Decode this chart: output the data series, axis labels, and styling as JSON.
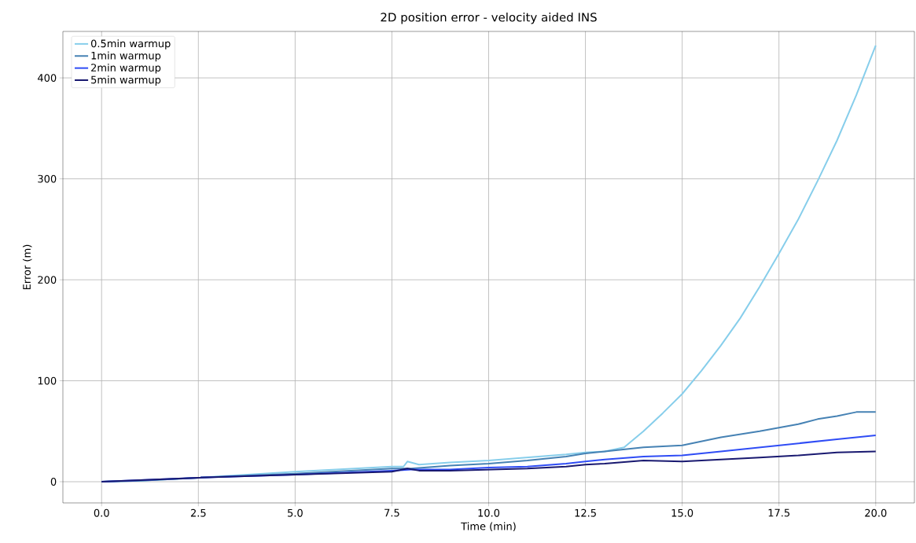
{
  "chart_data": {
    "type": "line",
    "title": "2D position error - velocity aided INS",
    "xlabel": "Time (min)",
    "ylabel": "Error (m)",
    "xlim": [
      -1,
      21
    ],
    "ylim": [
      -21,
      446
    ],
    "xticks": [
      {
        "value": 0,
        "label": "0.0"
      },
      {
        "value": 2.5,
        "label": "2.5"
      },
      {
        "value": 5,
        "label": "5.0"
      },
      {
        "value": 7.5,
        "label": "7.5"
      },
      {
        "value": 10,
        "label": "10.0"
      },
      {
        "value": 12.5,
        "label": "12.5"
      },
      {
        "value": 15,
        "label": "15.0"
      },
      {
        "value": 17.5,
        "label": "17.5"
      },
      {
        "value": 20,
        "label": "20.0"
      }
    ],
    "yticks": [
      0,
      100,
      200,
      300,
      400
    ],
    "grid": true,
    "legend": "top left",
    "line_style": "solid",
    "marker": "none",
    "series": [
      {
        "name": "0.5min warmup",
        "color": "#87ceeb",
        "x": [
          0,
          1,
          2.5,
          5,
          7.5,
          7.8,
          7.9,
          8.2,
          9,
          10,
          11,
          12,
          12.5,
          13,
          13.5,
          14,
          14.5,
          15,
          15.5,
          16,
          16.5,
          17,
          17.5,
          18,
          18.5,
          19,
          19.5,
          20
        ],
        "values": [
          0,
          1,
          4,
          10,
          15,
          15,
          20,
          17,
          19,
          21,
          24,
          27,
          29,
          30,
          34,
          50,
          68,
          87,
          110,
          135,
          162,
          193,
          226,
          260,
          298,
          338,
          383,
          432
        ]
      },
      {
        "name": "1min warmup",
        "color": "#4682b4",
        "x": [
          0,
          1,
          2.5,
          5,
          7.5,
          8,
          9,
          10,
          11,
          12,
          12.5,
          13,
          14,
          15,
          16,
          17,
          18,
          18.5,
          19,
          19.5,
          20
        ],
        "values": [
          0,
          1,
          4,
          8,
          13,
          13,
          16,
          18,
          21,
          25,
          28,
          30,
          34,
          36,
          44,
          50,
          57,
          62,
          65,
          69,
          69
        ]
      },
      {
        "name": "2min warmup",
        "color": "#2f4cf5",
        "x": [
          0,
          2.5,
          5,
          7.5,
          8,
          9,
          10,
          11,
          12,
          12.5,
          13,
          14,
          15,
          16,
          17,
          18,
          19,
          20
        ],
        "values": [
          0,
          4,
          7,
          11,
          12,
          12,
          14,
          15,
          18,
          20,
          22,
          25,
          26,
          30,
          34,
          38,
          42,
          46
        ]
      },
      {
        "name": "5min warmup",
        "color": "#191970",
        "x": [
          0,
          2.5,
          5,
          7.5,
          7.9,
          8.2,
          9,
          10,
          11,
          12,
          12.5,
          13,
          14,
          15,
          16,
          17,
          18,
          19,
          20
        ],
        "values": [
          0,
          4,
          7,
          10,
          13,
          11,
          11,
          12,
          13,
          15,
          17,
          18,
          21,
          20,
          22,
          24,
          26,
          29,
          30
        ]
      }
    ]
  }
}
